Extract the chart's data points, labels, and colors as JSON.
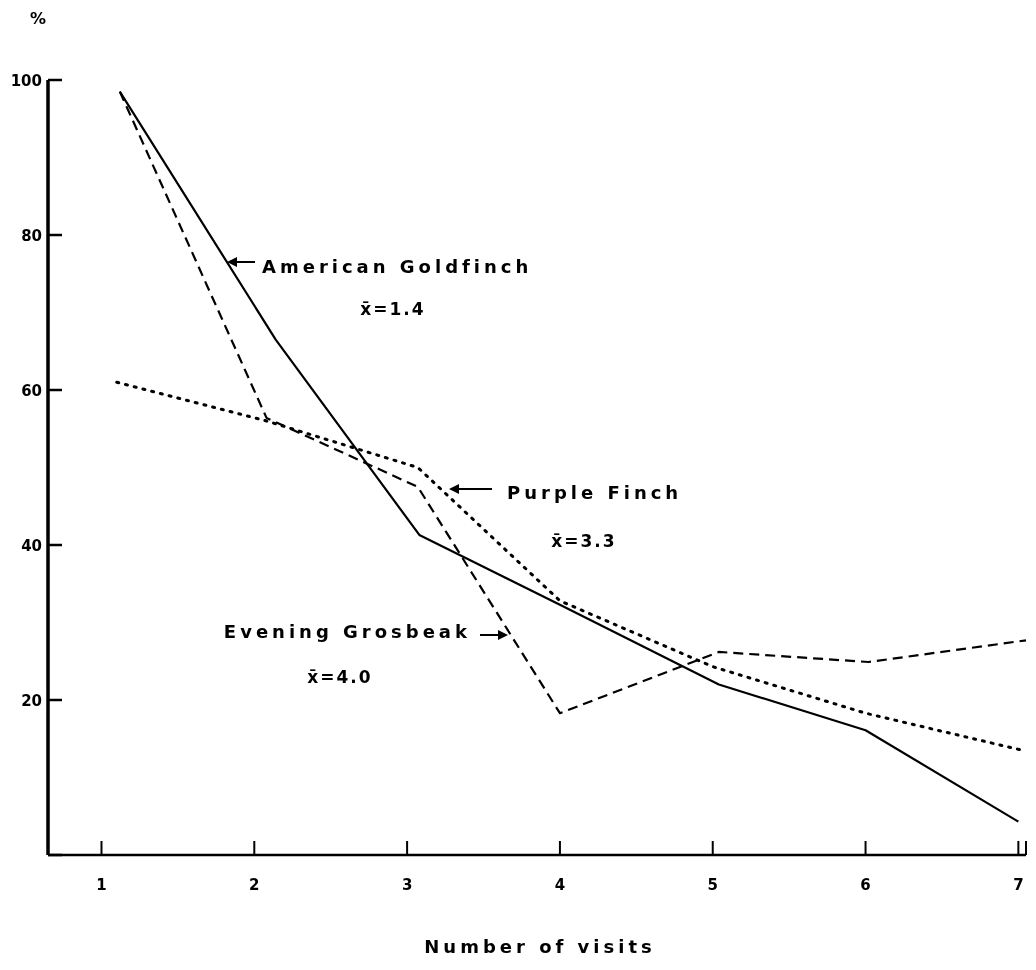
{
  "chart_data": {
    "type": "line",
    "xlabel": "Number of visits",
    "ylabel": "%",
    "xlim": [
      0.65,
      7.05
    ],
    "xticks": [
      1,
      2,
      3,
      4,
      5,
      6,
      7
    ],
    "ylim": [
      0,
      100
    ],
    "yticks": [
      {
        "value": 0,
        "label": null
      },
      20,
      40,
      60,
      80,
      100
    ],
    "grid": false,
    "legend": "top",
    "marker": "none",
    "series": [
      {
        "name": "American Goldfinch",
        "color": "#000000",
        "line_style": "solid",
        "x": [
          1.12,
          2.14,
          3.08,
          4,
          5.04,
          6,
          7
        ],
        "values": [
          98.5,
          66.5,
          41.3,
          32.3,
          22,
          16.1,
          4.3
        ]
      },
      {
        "name": "Purple Finch",
        "color": "#000000",
        "line_style": "dotted",
        "x": [
          1.1,
          2.08,
          3.07,
          4,
          5,
          6,
          7.05
        ],
        "values": [
          61,
          56,
          50,
          32.8,
          24.3,
          18.3,
          13.4
        ]
      },
      {
        "name": "Evening Grosbeak",
        "color": "#000000",
        "line_style": "dashed",
        "x": [
          1.12,
          2.08,
          3.07,
          4,
          5.04,
          6.02,
          7.05
        ],
        "values": [
          98.5,
          56.4,
          47.5,
          18.3,
          26.2,
          24.9,
          27.7
        ]
      }
    ],
    "annotations": [
      "x̄=1.4",
      "x̄=3.3",
      "x̄=4.0"
    ]
  }
}
